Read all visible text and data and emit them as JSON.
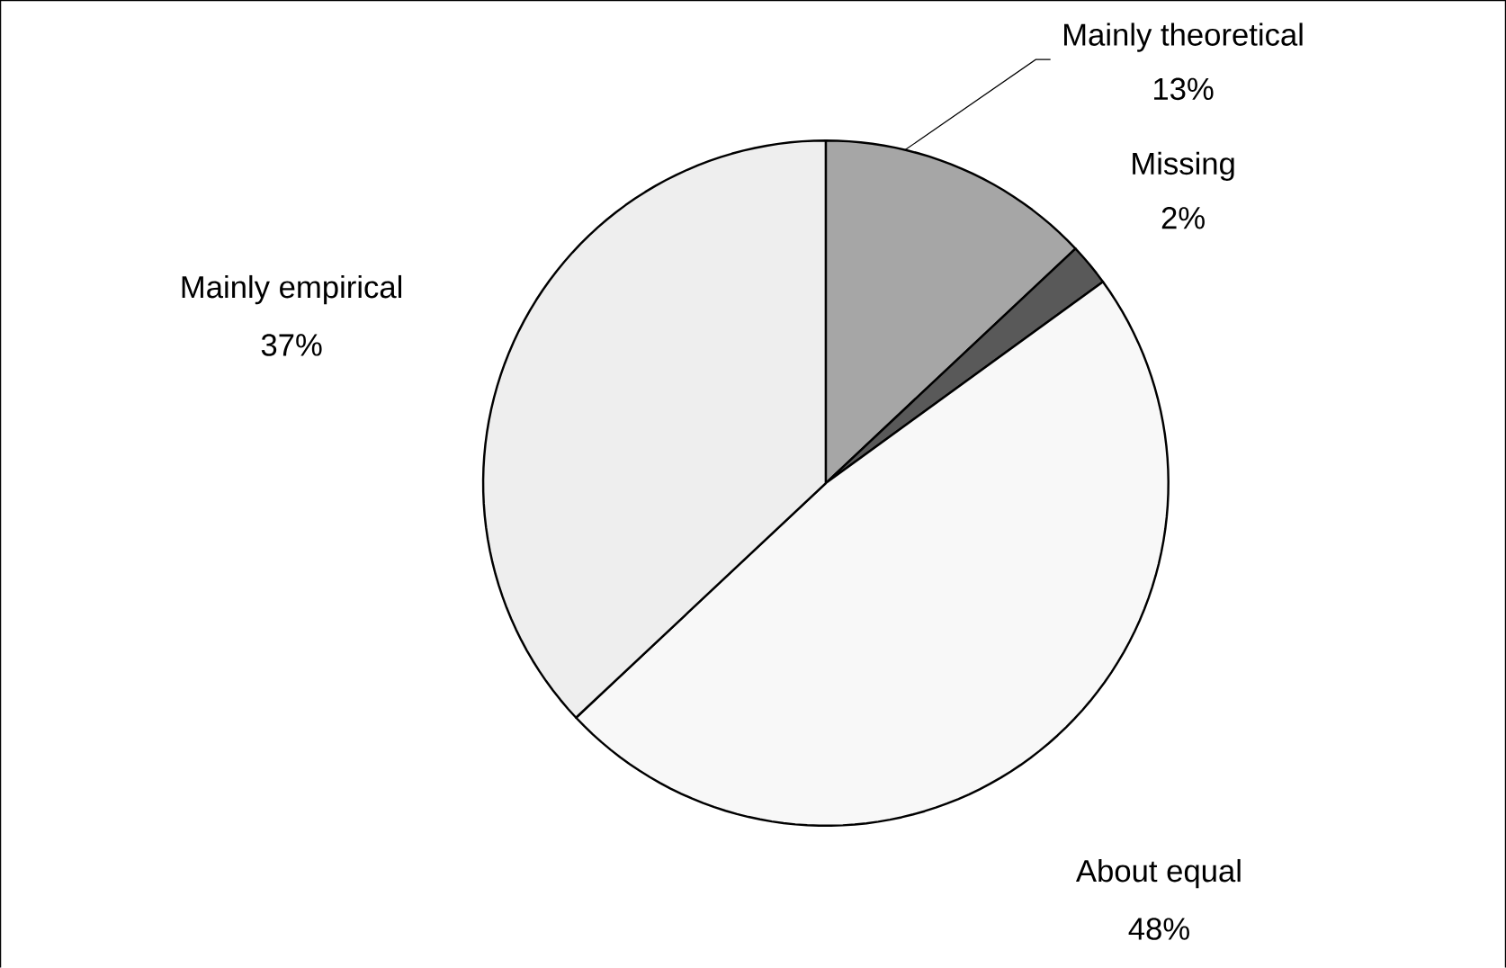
{
  "chart_data": {
    "type": "pie",
    "categories": [
      "Mainly theoretical",
      "Missing",
      "About equal",
      "Mainly empirical"
    ],
    "values": [
      13,
      2,
      48,
      37
    ],
    "value_labels": [
      "13%",
      "2%",
      "48%",
      "37%"
    ],
    "colors": [
      "#a6a6a6",
      "#595959",
      "#f8f8f8",
      "#eeeeee"
    ]
  }
}
